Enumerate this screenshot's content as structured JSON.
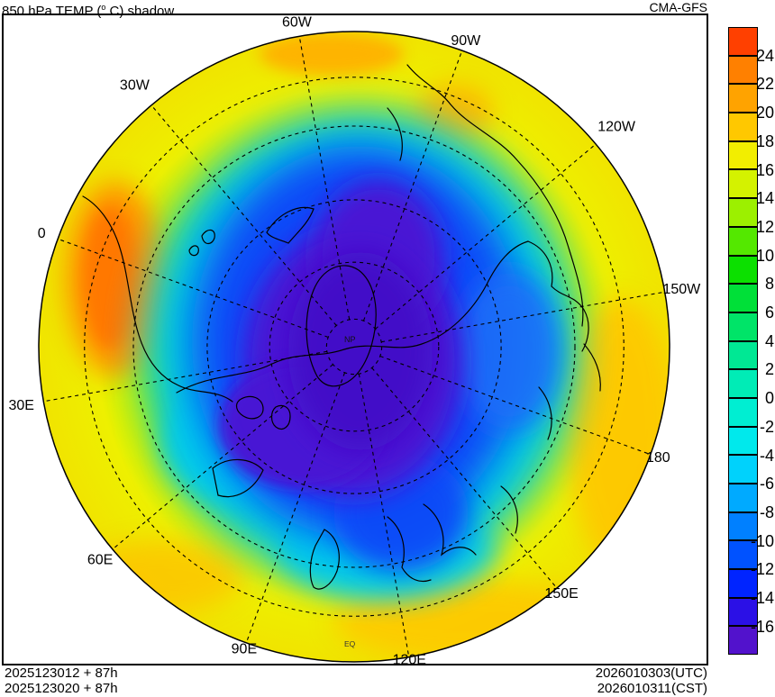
{
  "header": {
    "title_pre": "850 hPa TEMP (",
    "degree_symbol": "o",
    "title_post": " C) shadow",
    "model": "CMA-GFS"
  },
  "map": {
    "pole_label": "NP",
    "equator_label": "EQ",
    "meridians": [
      {
        "label": "0",
        "angle_deg": -70
      },
      {
        "label": "30W",
        "angle_deg": -40
      },
      {
        "label": "60W",
        "angle_deg": -10
      },
      {
        "label": "90W",
        "angle_deg": 20
      },
      {
        "label": "120W",
        "angle_deg": 50
      },
      {
        "label": "150W",
        "angle_deg": 80
      },
      {
        "label": "180",
        "angle_deg": 110
      },
      {
        "label": "150E",
        "angle_deg": 140
      },
      {
        "label": "120E",
        "angle_deg": 170
      },
      {
        "label": "90E",
        "angle_deg": 200
      },
      {
        "label": "60E",
        "angle_deg": 230
      },
      {
        "label": "30E",
        "angle_deg": 260
      }
    ],
    "latitude_circle_fracs": [
      0.0875,
      0.268,
      0.466,
      0.7,
      0.855
    ]
  },
  "colorbar": {
    "tick_labels": [
      "24",
      "22",
      "20",
      "18",
      "16",
      "14",
      "12",
      "10",
      "8",
      "6",
      "4",
      "2",
      "0",
      "-2",
      "-4",
      "-6",
      "-8",
      "-10",
      "-12",
      "-14",
      "-16"
    ],
    "segment_colors": [
      "#FF4000",
      "#FF8000",
      "#FFA300",
      "#FFC800",
      "#F2EE00",
      "#D4F200",
      "#9CF000",
      "#54E800",
      "#0CE000",
      "#00E038",
      "#00E468",
      "#00E894",
      "#00ECB6",
      "#00EED2",
      "#00E9EC",
      "#00D2FC",
      "#00AAFF",
      "#0080FF",
      "#0052FF",
      "#0024FF",
      "#2B10E6",
      "#5212CC"
    ]
  },
  "footer": {
    "left_lines": [
      "2025123012 + 87h",
      "2025123020 + 87h"
    ],
    "right_lines": [
      "2026010303(UTC)",
      "2026010311(CST)"
    ]
  },
  "chart_data": {
    "type": "heatmap",
    "title": "850 hPa TEMP (°C) shadow",
    "model": "CMA-GFS",
    "projection": "Northern Hemisphere polar stereographic, equator at outer rim, North Pole (NP) at center",
    "units": "°C",
    "colorbar_levels": [
      -16,
      -14,
      -12,
      -10,
      -8,
      -6,
      -4,
      -2,
      0,
      2,
      4,
      6,
      8,
      10,
      12,
      14,
      16,
      18,
      20,
      22,
      24
    ],
    "colorbar_colors": [
      "#5212CC",
      "#2B10E6",
      "#0024FF",
      "#0052FF",
      "#0080FF",
      "#00AAFF",
      "#00D2FC",
      "#00E9EC",
      "#00EED2",
      "#00ECB6",
      "#00E894",
      "#00E468",
      "#00E038",
      "#0CE000",
      "#54E800",
      "#9CF000",
      "#D4F200",
      "#F2EE00",
      "#FFC800",
      "#FFA300",
      "#FF8000",
      "#FF4000"
    ],
    "runs": [
      {
        "init_time": "2025123012",
        "forecast_lead": "+ 87h"
      },
      {
        "init_time": "2025123020",
        "forecast_lead": "+ 87h"
      }
    ],
    "valid_times": [
      "2026010303(UTC)",
      "2026010311(CST)"
    ],
    "meridian_labels": [
      "0",
      "30W",
      "60W",
      "90W",
      "120W",
      "150W",
      "180",
      "150E",
      "120E",
      "90E",
      "60E",
      "30E"
    ],
    "field_summary": {
      "cold_core": "below -16°C (blue-violet) over the Arctic Ocean, Greenland and central/eastern Siberia",
      "cold_band": "-4 to -14°C (cyan/blue) ring over northern Canada, North Atlantic and northeast Asia",
      "mild_band": "0 to 12°C (green) across the mid-latitudes",
      "warm_rim": "14 to 22°C (yellow/gold) along the subtropical outer rim",
      "hot_spot": "22 to above 24°C (orange/red) over northern Africa near the 0/30E rim"
    }
  }
}
